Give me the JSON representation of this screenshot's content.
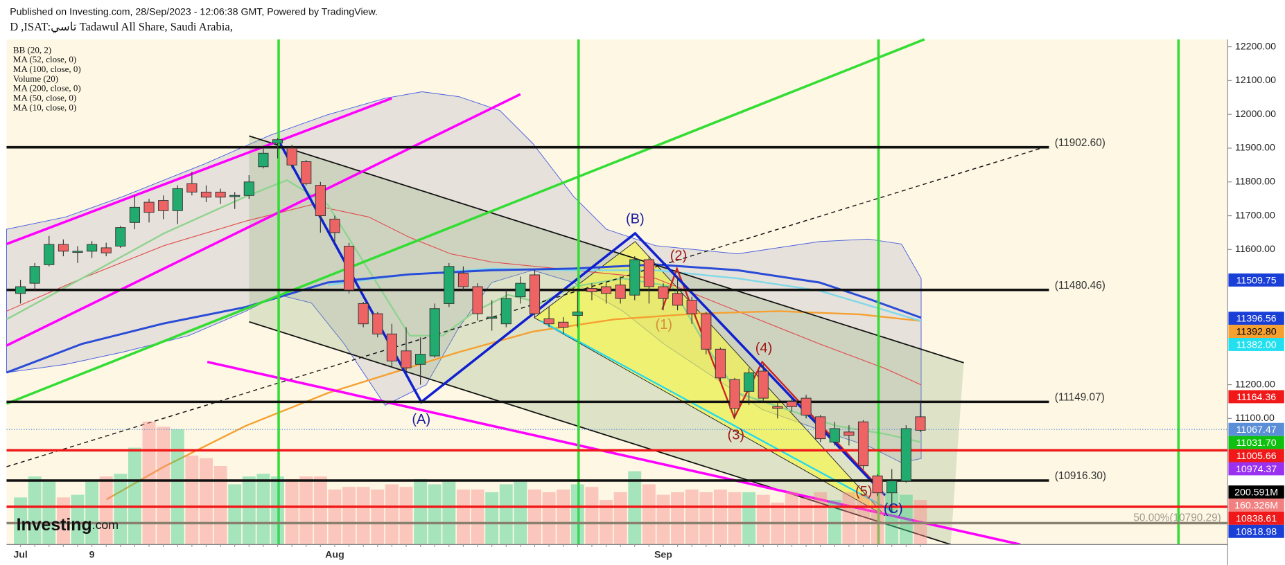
{
  "chart_data": {
    "type": "candlestick",
    "header": "Published on Investing.com, 28/Sep/2023 - 12:06:38 GMT, Powered by TradingView.",
    "title": "D ,ISAT:تاسي Tadawul All Share, Saudi Arabia,",
    "indicators": [
      "BB (20, 2)",
      "MA (52, close, 0)",
      "MA (100, close, 0)",
      "Volume (20)",
      "MA (200, close, 0)",
      "MA (50, close, 0)",
      "MA (10, close, 0)"
    ],
    "logo": {
      "brand": "Investing",
      "suffix": ".com"
    },
    "categories": [
      "Jul",
      null,
      null,
      null,
      null,
      "9",
      null,
      null,
      null,
      null,
      null,
      null,
      null,
      null,
      null,
      null,
      null,
      null,
      null,
      null,
      null,
      null,
      "Aug",
      null,
      null,
      null,
      null,
      null,
      null,
      null,
      null,
      null,
      null,
      null,
      null,
      null,
      null,
      null,
      null,
      null,
      null,
      null,
      null,
      null,
      null,
      "Sep",
      null,
      null,
      null,
      null,
      null,
      null,
      null,
      null,
      null,
      null,
      null,
      null,
      null,
      null,
      null,
      null,
      null,
      null
    ],
    "open": [
      11470,
      11500,
      11555,
      11615,
      11595,
      11595,
      11605,
      11610,
      11680,
      11740,
      11745,
      11715,
      11795,
      11770,
      11770,
      11760,
      11760,
      11845,
      11915,
      11900,
      11860,
      11790,
      11690,
      11610,
      11440,
      11410,
      11350,
      11300,
      11260,
      11285,
      11440,
      11530,
      11490,
      11400,
      11380,
      11460,
      11525,
      11395,
      11385,
      11405,
      11485,
      11490,
      11495,
      11465,
      11570,
      11490,
      11470,
      11450,
      11410,
      11305,
      11215,
      11180,
      11240,
      11135,
      11150,
      11160,
      11105,
      11030,
      11060,
      11090,
      10930,
      10880,
      10915,
      11105
    ],
    "high": [
      11510,
      11560,
      11640,
      11630,
      11610,
      11625,
      11620,
      11670,
      11760,
      11750,
      11760,
      11790,
      11830,
      11790,
      11780,
      11770,
      11820,
      11900,
      11930,
      11910,
      11865,
      11800,
      11700,
      11620,
      11445,
      11415,
      11380,
      11370,
      11340,
      11440,
      11560,
      11550,
      11500,
      11450,
      11480,
      11520,
      11540,
      11430,
      11400,
      11480,
      11500,
      11500,
      11520,
      11580,
      11580,
      11500,
      11520,
      11460,
      11415,
      11310,
      11220,
      11250,
      11260,
      11145,
      11160,
      11170,
      11110,
      11090,
      11080,
      11095,
      10935,
      10950,
      11080,
      11150
    ],
    "low": [
      11440,
      11480,
      11550,
      11580,
      11560,
      11575,
      11580,
      11605,
      11660,
      11680,
      11690,
      11675,
      11760,
      11740,
      11735,
      11720,
      11750,
      11840,
      11870,
      11840,
      11790,
      11650,
      11620,
      11470,
      11370,
      11340,
      11250,
      11240,
      11200,
      11280,
      11430,
      11480,
      11390,
      11360,
      11370,
      11440,
      11400,
      11370,
      11350,
      11370,
      11450,
      11440,
      11440,
      11450,
      11440,
      11420,
      11420,
      11380,
      11290,
      11210,
      11100,
      11140,
      11150,
      11100,
      11120,
      11100,
      11030,
      11020,
      11020,
      10950,
      10870,
      10820,
      10910,
      11060
    ],
    "close": [
      11490,
      11550,
      11615,
      11595,
      11595,
      11615,
      11590,
      11665,
      11725,
      11710,
      11715,
      11780,
      11770,
      11755,
      11755,
      11760,
      11800,
      11885,
      11925,
      11850,
      11795,
      11700,
      11650,
      11480,
      11380,
      11350,
      11270,
      11250,
      11290,
      11425,
      11550,
      11490,
      11410,
      11400,
      11455,
      11500,
      11410,
      11380,
      11370,
      11415,
      11475,
      11470,
      11455,
      11570,
      11490,
      11455,
      11435,
      11410,
      11305,
      11220,
      11130,
      11235,
      11160,
      11130,
      11135,
      11110,
      11040,
      11070,
      11050,
      10960,
      10880,
      10915,
      11070,
      11065
    ],
    "volume": [
      180,
      260,
      240,
      180,
      190,
      240,
      260,
      270,
      370,
      470,
      450,
      440,
      340,
      330,
      300,
      230,
      260,
      270,
      260,
      250,
      260,
      260,
      210,
      220,
      220,
      210,
      230,
      220,
      250,
      230,
      240,
      210,
      210,
      200,
      230,
      240,
      210,
      200,
      210,
      230,
      220,
      170,
      200,
      280,
      230,
      190,
      200,
      210,
      200,
      210,
      200,
      200,
      190,
      160,
      200,
      180,
      200,
      170,
      200,
      190,
      200,
      200,
      190,
      170
    ],
    "up_color": "#22ab6e",
    "down_color": "#ee6464",
    "ylim": [
      10727,
      12222
    ],
    "volume_lim": [
      0,
      1931
    ],
    "yticks": [
      {
        "value": 12200,
        "label": "12200.00"
      },
      {
        "value": 12100,
        "label": "12100.00"
      },
      {
        "value": 12000,
        "label": "12000.00"
      },
      {
        "value": 11900,
        "label": "11900.00"
      },
      {
        "value": 11800,
        "label": "11800.00"
      },
      {
        "value": 11700,
        "label": "11700.00"
      },
      {
        "value": 11600,
        "label": "11600.00"
      },
      {
        "value": 11200,
        "label": "11200.00"
      },
      {
        "value": 11100,
        "label": "11100.00"
      }
    ],
    "horizontal_lines": [
      {
        "value": 11902.6,
        "label": "(11902.60)"
      },
      {
        "value": 11480.46,
        "label": "(11480.46)"
      },
      {
        "value": 11149.07,
        "label": "(11149.07)"
      },
      {
        "value": 10916.3,
        "label": "(10916.30)"
      }
    ],
    "red_lines": [
      11005.66,
      10838.61
    ],
    "fib_line": {
      "value": 10790.29,
      "label": "50.00%(10790.29)"
    },
    "dotted_line": 11067.47,
    "price_tags": [
      {
        "value": 11509.75,
        "label": "11509.75",
        "color": "#1a3fd6"
      },
      {
        "value": 11396.56,
        "label": "11396.56",
        "color": "#1a3fd6"
      },
      {
        "value": 11392.8,
        "label": "11392.80",
        "color": "#f5a030"
      },
      {
        "value": 11382,
        "label": "11382.00",
        "color": "#22e0f0"
      },
      {
        "value": 11164.36,
        "label": "11164.36",
        "color": "#f01818"
      },
      {
        "value": 11067.47,
        "label": "11067.47",
        "color": "#5a8fd8"
      },
      {
        "value": 11031.7,
        "label": "11031.70",
        "color": "#10c010"
      },
      {
        "value": 11005.66,
        "label": "11005.66",
        "color": "#f01818"
      },
      {
        "value": 10974.37,
        "label": "10974.37",
        "color": "#9a30f0"
      }
    ],
    "volume_tags": [
      {
        "value": 200.591,
        "label": "200.591M",
        "color": "#000000"
      },
      {
        "value": 160.326,
        "label": "160.326M",
        "color": "#f28080"
      }
    ],
    "low_tags": [
      {
        "value": 10838.61,
        "label": "10838.61",
        "color": "#f01818"
      },
      {
        "value": 10818.98,
        "label": "10818.98",
        "color": "#1a3fd6"
      }
    ],
    "annotations": [
      "(A)",
      "(B)",
      "(C)",
      "(1)",
      "(2)",
      "(3)",
      "(4)",
      "(5)"
    ]
  }
}
